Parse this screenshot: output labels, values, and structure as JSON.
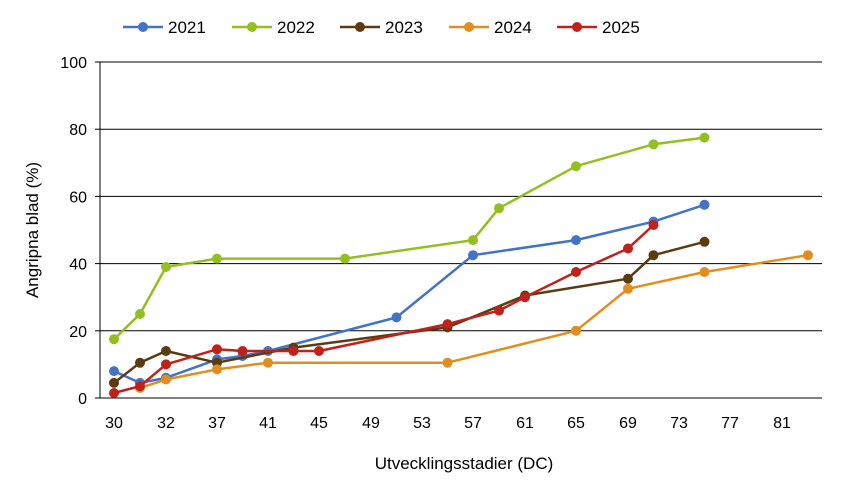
{
  "chart_data": {
    "type": "line",
    "xlabel": "Utvecklingsstadier (DC)",
    "ylabel": "Angripna blad (%)",
    "ylim": [
      0,
      100
    ],
    "yticks": [
      "0",
      "20",
      "40",
      "60",
      "80",
      "100"
    ],
    "xtick_labels": [
      "30",
      "32",
      "37",
      "41",
      "45",
      "49",
      "53",
      "57",
      "61",
      "65",
      "69",
      "73",
      "77",
      "81"
    ],
    "grid": "horizontal",
    "legend_position": "top",
    "series": [
      {
        "name": "2021",
        "color": "#4472c4",
        "points": [
          [
            30,
            8
          ],
          [
            31,
            4.5
          ],
          [
            32,
            6
          ],
          [
            37,
            11.5
          ],
          [
            39,
            12.5
          ],
          [
            41,
            14
          ],
          [
            51,
            24
          ],
          [
            57,
            42.5
          ],
          [
            65,
            47
          ],
          [
            71,
            52.5
          ],
          [
            75,
            57.5
          ]
        ]
      },
      {
        "name": "2022",
        "color": "#92c01f",
        "points": [
          [
            30,
            17.5
          ],
          [
            31,
            25
          ],
          [
            32,
            39
          ],
          [
            37,
            41.5
          ],
          [
            47,
            41.5
          ],
          [
            57,
            47
          ],
          [
            59,
            56.5
          ],
          [
            65,
            69
          ],
          [
            71,
            75.5
          ],
          [
            75,
            77.5
          ]
        ]
      },
      {
        "name": "2023",
        "color": "#5b3c11",
        "points": [
          [
            30,
            4.5
          ],
          [
            31,
            10.5
          ],
          [
            32,
            14
          ],
          [
            37,
            10.5
          ],
          [
            43,
            15
          ],
          [
            55,
            21
          ],
          [
            61,
            30.5
          ],
          [
            69,
            35.5
          ],
          [
            71,
            42.5
          ],
          [
            75,
            46.5
          ]
        ]
      },
      {
        "name": "2024",
        "color": "#e08f1f",
        "points": [
          [
            31,
            3
          ],
          [
            32,
            5.5
          ],
          [
            37,
            8.5
          ],
          [
            41,
            10.5
          ],
          [
            55,
            10.5
          ],
          [
            65,
            20
          ],
          [
            69,
            32.5
          ],
          [
            75,
            37.5
          ],
          [
            83,
            42.5
          ]
        ]
      },
      {
        "name": "2025",
        "color": "#c0211b",
        "points": [
          [
            30,
            1.5
          ],
          [
            31,
            3.5
          ],
          [
            32,
            10
          ],
          [
            37,
            14.5
          ],
          [
            39,
            14
          ],
          [
            43,
            14
          ],
          [
            45,
            14
          ],
          [
            55,
            22
          ],
          [
            59,
            26
          ],
          [
            61,
            30
          ],
          [
            65,
            37.5
          ],
          [
            69,
            44.5
          ],
          [
            71,
            51.5
          ]
        ]
      }
    ]
  }
}
